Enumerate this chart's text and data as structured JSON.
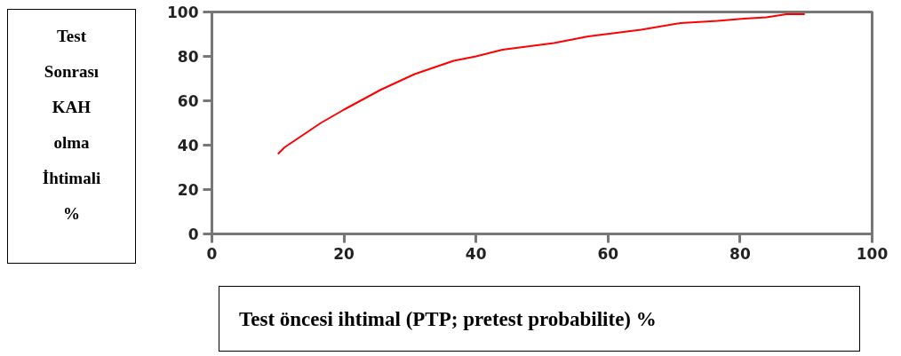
{
  "chart_data": {
    "type": "line",
    "xlabel": "Test öncesi ihtimal (PTP; pretest probabilite) %",
    "ylabel": "Test\nSonrası\nKAH\nolma\nİhtimali\n%",
    "x": [
      10,
      11,
      16.5,
      20,
      25.6,
      30.7,
      36.6,
      40,
      44,
      51.8,
      57,
      65,
      71,
      76.6,
      80.6,
      84,
      87,
      89.8
    ],
    "series": [
      {
        "color": "#ff0000",
        "values": [
          36,
          39,
          50,
          56,
          65,
          72,
          78,
          80,
          83,
          86,
          89,
          92,
          95,
          96,
          97,
          97.6,
          99,
          99
        ]
      }
    ],
    "xlim": [
      0,
      100
    ],
    "ylim": [
      0,
      100
    ],
    "xticks": [
      0,
      20,
      40,
      60,
      80,
      100
    ],
    "yticks": [
      0,
      20,
      40,
      60,
      80,
      100
    ],
    "grid": false,
    "marker": "none",
    "line_style": "solid"
  }
}
